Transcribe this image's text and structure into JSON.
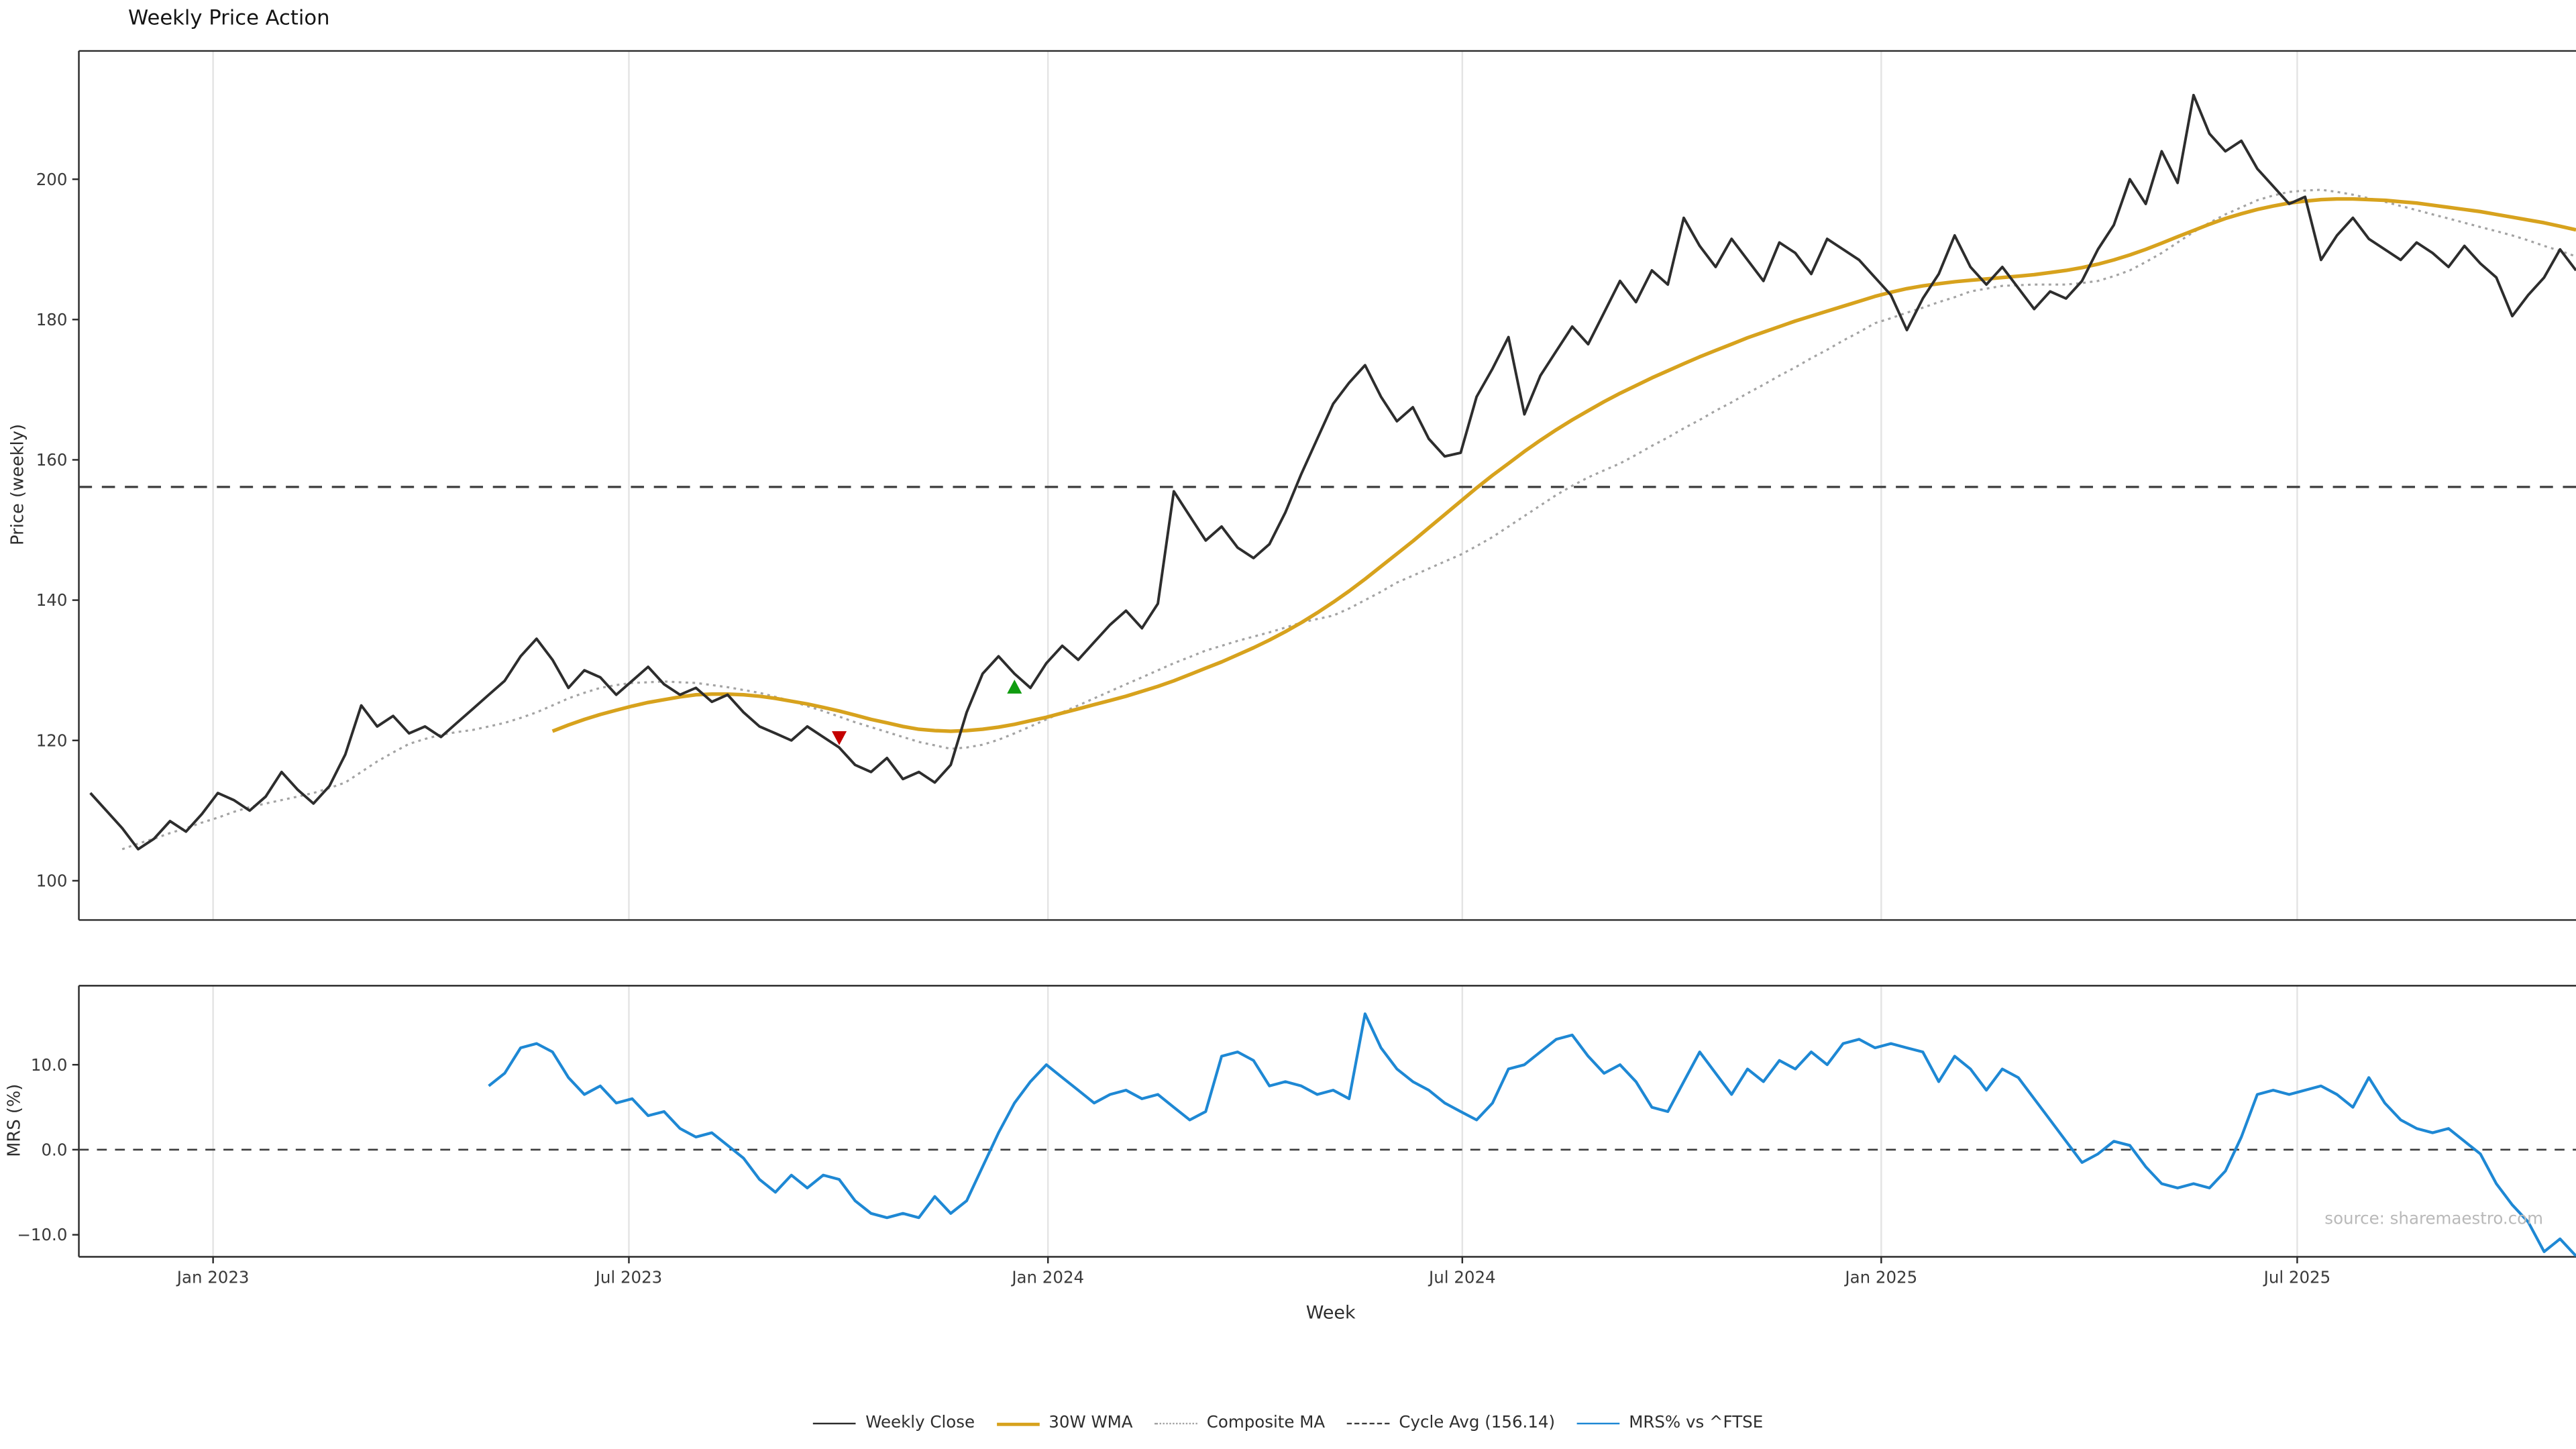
{
  "chart_data": {
    "type": "line",
    "title": "Weekly Price Action",
    "xlabel": "Week",
    "source_text": "source: sharemaestro.com",
    "n_weeks": 157,
    "x_ticks": [
      {
        "label": "Jan 2023",
        "week": 7.7
      },
      {
        "label": "Jul 2023",
        "week": 33.8
      },
      {
        "label": "Jan 2024",
        "week": 60.1
      },
      {
        "label": "Jul 2024",
        "week": 86.1
      },
      {
        "label": "Jan 2025",
        "week": 112.4
      },
      {
        "label": "Jul 2025",
        "week": 138.5
      }
    ],
    "price_panel": {
      "ylabel": "Price (weekly)",
      "ylim": [
        94.4,
        218.3
      ],
      "yticks": [
        100,
        120,
        140,
        160,
        180,
        200
      ],
      "cycle_avg": 156.14,
      "series": {
        "weekly_close": [
          112.5,
          110,
          107.5,
          104.5,
          106,
          108.5,
          107,
          109.5,
          112.5,
          111.5,
          110,
          112,
          115.5,
          113,
          111,
          113.5,
          118,
          125,
          122,
          123.5,
          121,
          122,
          120.5,
          122.5,
          124.5,
          126.5,
          128.5,
          132,
          134.5,
          131.5,
          127.5,
          130,
          129,
          126.5,
          128.5,
          130.5,
          128,
          126.5,
          127.5,
          125.5,
          126.5,
          124,
          122,
          121,
          120,
          122,
          120.5,
          119,
          116.5,
          115.5,
          117.5,
          114.5,
          115.5,
          114,
          116.5,
          124,
          129.5,
          132,
          129.5,
          127.5,
          131,
          133.5,
          131.5,
          134,
          136.5,
          138.5,
          136,
          139.5,
          155.5,
          152,
          148.5,
          150.5,
          147.5,
          146,
          148,
          152.5,
          158,
          163,
          168,
          171,
          173.5,
          169,
          165.5,
          167.5,
          163,
          160.5,
          161,
          169,
          173,
          177.5,
          166.5,
          172,
          175.5,
          179,
          176.5,
          181,
          185.5,
          182.5,
          187,
          185,
          194.5,
          190.5,
          187.5,
          191.5,
          188.5,
          185.5,
          191,
          189.5,
          186.5,
          191.5,
          190,
          188.5,
          186,
          183.5,
          178.5,
          183,
          186.5,
          192,
          187.5,
          185,
          187.5,
          184.5,
          181.5,
          184,
          183,
          185.5,
          190,
          193.5,
          200,
          196.5,
          204,
          199.5,
          212,
          206.5,
          204,
          205.5,
          201.5,
          199,
          196.5,
          197.5,
          188.5,
          192,
          194.5,
          191.5,
          190,
          188.5,
          191,
          189.5,
          187.5,
          190.5,
          188,
          186,
          180.5,
          183.5,
          186,
          190,
          187
        ],
        "wma_30w": [
          null,
          null,
          null,
          null,
          null,
          null,
          null,
          null,
          null,
          null,
          null,
          null,
          null,
          null,
          null,
          null,
          null,
          null,
          null,
          null,
          null,
          null,
          null,
          null,
          null,
          null,
          null,
          null,
          null,
          121.3,
          122.2,
          123,
          123.7,
          124.3,
          124.9,
          125.4,
          125.8,
          126.2,
          126.5,
          126.6,
          126.6,
          126.5,
          126.3,
          126,
          125.6,
          125.2,
          124.7,
          124.2,
          123.6,
          123,
          122.5,
          122,
          121.6,
          121.4,
          121.3,
          121.4,
          121.6,
          121.9,
          122.3,
          122.8,
          123.3,
          123.9,
          124.5,
          125.1,
          125.7,
          126.3,
          127,
          127.7,
          128.5,
          129.4,
          130.3,
          131.2,
          132.2,
          133.2,
          134.3,
          135.5,
          136.8,
          138.2,
          139.7,
          141.3,
          143,
          144.8,
          146.6,
          148.4,
          150.3,
          152.2,
          154.1,
          156,
          157.8,
          159.5,
          161.2,
          162.8,
          164.3,
          165.7,
          167,
          168.3,
          169.5,
          170.6,
          171.7,
          172.7,
          173.7,
          174.7,
          175.6,
          176.5,
          177.4,
          178.2,
          179,
          179.8,
          180.5,
          181.2,
          181.9,
          182.6,
          183.3,
          183.9,
          184.4,
          184.8,
          185.1,
          185.4,
          185.6,
          185.8,
          186,
          186.2,
          186.4,
          186.7,
          187,
          187.4,
          187.9,
          188.5,
          189.2,
          190,
          190.9,
          191.8,
          192.7,
          193.6,
          194.4,
          195.1,
          195.7,
          196.2,
          196.6,
          196.9,
          197.1,
          197.2,
          197.2,
          197.1,
          197,
          196.8,
          196.6,
          196.3,
          196,
          195.7,
          195.4,
          195,
          194.6,
          194.2,
          193.8,
          193.3,
          192.8
        ],
        "composite_ma": [
          null,
          null,
          104.5,
          105.3,
          106,
          106.8,
          107.5,
          108.3,
          109,
          109.8,
          110.5,
          111,
          111.5,
          112,
          112.5,
          113.2,
          114,
          115.5,
          117,
          118.3,
          119.5,
          120.2,
          120.8,
          121.2,
          121.5,
          122,
          122.5,
          123.2,
          124,
          125,
          126,
          126.8,
          127.5,
          127.9,
          128.2,
          128.3,
          128.4,
          128.3,
          128.2,
          127.9,
          127.6,
          127.2,
          126.8,
          126.2,
          125.6,
          124.9,
          124.2,
          123.4,
          122.6,
          121.9,
          121.2,
          120.5,
          119.8,
          119.3,
          118.8,
          119,
          119.4,
          120.1,
          121,
          122,
          123,
          124,
          125,
          126,
          127,
          128,
          129,
          130,
          131,
          131.9,
          132.8,
          133.5,
          134.2,
          134.8,
          135.4,
          136.1,
          136.8,
          137.3,
          137.8,
          138.8,
          140,
          141.2,
          142.5,
          143.5,
          144.5,
          145.5,
          146.5,
          147.7,
          149,
          150.5,
          152,
          153.5,
          155,
          156.3,
          157.5,
          158.5,
          159.5,
          160.7,
          162,
          163.2,
          164.5,
          165.7,
          167,
          168.2,
          169.5,
          170.7,
          172,
          173.2,
          174.5,
          175.7,
          177,
          178.2,
          179.5,
          180.2,
          181,
          181.7,
          182.5,
          183.2,
          184,
          184.4,
          184.8,
          184.9,
          185,
          185,
          185,
          185.2,
          185.5,
          186.2,
          187,
          188.2,
          189.5,
          191,
          192.5,
          193.8,
          195,
          196,
          197,
          197.7,
          198.2,
          198.4,
          198.5,
          198.2,
          197.8,
          197.3,
          196.8,
          196.2,
          195.6,
          195,
          194.4,
          193.8,
          193.2,
          192.6,
          192,
          191.3,
          190.5,
          189.8,
          189
        ]
      },
      "markers": [
        {
          "type": "sell",
          "shape": "triangle-down",
          "color": "#c40000",
          "week_index": 47,
          "price": 120.5
        },
        {
          "type": "buy",
          "shape": "triangle-up",
          "color": "#0f9c0f",
          "week_index": 58,
          "price": 127.5
        }
      ]
    },
    "mrs_panel": {
      "ylabel": "MRS (%)",
      "ylim": [
        -12.6,
        19.3
      ],
      "yticks": [
        {
          "value": 10,
          "label": "10.0"
        },
        {
          "value": 0,
          "label": "0.0"
        },
        {
          "value": -10,
          "label": "−10.0"
        }
      ],
      "zero_line": 0,
      "series": {
        "mrs_vs_ftse": [
          null,
          null,
          null,
          null,
          null,
          null,
          null,
          null,
          null,
          null,
          null,
          null,
          null,
          null,
          null,
          null,
          null,
          null,
          null,
          null,
          null,
          null,
          null,
          null,
          null,
          7.5,
          9,
          12,
          12.5,
          11.5,
          8.5,
          6.5,
          7.5,
          5.5,
          6,
          4,
          4.5,
          2.5,
          1.5,
          2,
          0.5,
          -1,
          -3.5,
          -5,
          -3,
          -4.5,
          -3,
          -3.5,
          -6,
          -7.5,
          -8,
          -7.5,
          -8,
          -5.5,
          -7.5,
          -6,
          -2,
          2,
          5.5,
          8,
          10,
          8.5,
          7,
          5.5,
          6.5,
          7,
          6,
          6.5,
          5,
          3.5,
          4.5,
          11,
          11.5,
          10.5,
          7.5,
          8,
          7.5,
          6.5,
          7,
          6,
          16,
          12,
          9.5,
          8,
          7,
          5.5,
          4.5,
          3.5,
          5.5,
          9.5,
          10,
          11.5,
          13,
          13.5,
          11,
          9,
          10,
          8,
          5,
          4.5,
          8,
          11.5,
          9,
          6.5,
          9.5,
          8,
          10.5,
          9.5,
          11.5,
          10,
          12.5,
          13,
          12,
          12.5,
          12,
          11.5,
          8,
          11,
          9.5,
          7,
          9.5,
          8.5,
          6,
          3.5,
          1,
          -1.5,
          -0.5,
          1,
          0.5,
          -2,
          -4,
          -4.5,
          -4,
          -4.5,
          -2.5,
          1.5,
          6.5,
          7,
          6.5,
          7,
          7.5,
          6.5,
          5,
          8.5,
          5.5,
          3.5,
          2.5,
          2,
          2.5,
          1,
          -0.5,
          -4,
          -6.5,
          -8.5,
          -12,
          -10.5,
          -12.5
        ]
      }
    },
    "legend": [
      {
        "label": "Weekly Close",
        "color": "#2d2d2d",
        "style": "solid"
      },
      {
        "label": "30W WMA",
        "color": "#d7a21d",
        "style": "solid"
      },
      {
        "label": "Composite MA",
        "color": "#a3a3a3",
        "style": "dotted"
      },
      {
        "label": "Cycle Avg (156.14)",
        "color": "#3c3c3c",
        "style": "dashed"
      },
      {
        "label": "MRS% vs ^FTSE",
        "color": "#1e88d4",
        "style": "solid"
      }
    ],
    "colors": {
      "weekly_close": "#2d2d2d",
      "wma_30w": "#d7a21d",
      "composite_ma": "#a3a3a3",
      "cycle_avg": "#3c3c3c",
      "mrs": "#1e88d4",
      "grid": "#e4e4e4",
      "spine": "#2b2b2b",
      "tick_text": "#3a3a3a",
      "background": "#ffffff"
    }
  }
}
